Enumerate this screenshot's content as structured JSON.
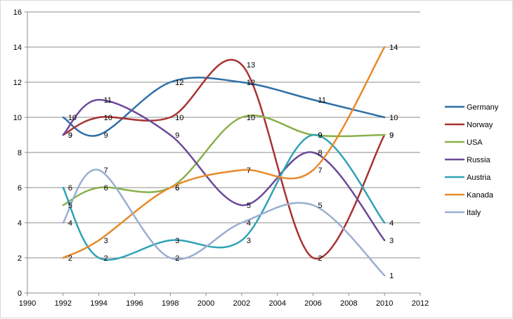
{
  "chart_data": {
    "type": "line",
    "title": "",
    "xlabel": "",
    "ylabel": "",
    "xlim": [
      1990,
      2012
    ],
    "ylim": [
      0,
      16
    ],
    "x_ticks": [
      1990,
      1992,
      1994,
      1996,
      1998,
      2000,
      2002,
      2004,
      2006,
      2008,
      2010,
      2012
    ],
    "y_ticks": [
      0,
      2,
      4,
      6,
      8,
      10,
      12,
      14,
      16
    ],
    "x_tick_labels": [
      "1990",
      "1992",
      "1994",
      "1996",
      "1998",
      "2000",
      "2002",
      "2004",
      "2006",
      "2008",
      "2010",
      "2012"
    ],
    "y_tick_labels": [
      "0",
      "2",
      "4",
      "6",
      "8",
      "10",
      "12",
      "14",
      "16"
    ],
    "x": [
      1992,
      1994,
      1998,
      2002,
      2006,
      2010
    ],
    "grid": "horizontal",
    "legend_position": "right",
    "series": [
      {
        "name": "Germany",
        "color": "#2e6fa7",
        "values": [
          10,
          9,
          12,
          12,
          11,
          10
        ],
        "labels": [
          "10",
          "9",
          "12",
          "12",
          "11",
          "10"
        ]
      },
      {
        "name": "Norway",
        "color": "#a83232",
        "values": [
          9,
          10,
          10,
          13,
          2,
          9
        ],
        "labels": [
          "9",
          "10",
          "10",
          "13",
          "2",
          "9"
        ]
      },
      {
        "name": "USA",
        "color": "#8ab04a",
        "values": [
          5,
          6,
          6,
          10,
          9,
          9
        ],
        "labels": [
          "5",
          "6",
          "6",
          "10",
          "9",
          "9"
        ]
      },
      {
        "name": "Russia",
        "color": "#6b4a9a",
        "values": [
          9,
          11,
          9,
          5,
          8,
          3
        ],
        "labels": [
          "9",
          "11",
          "9",
          "5",
          "8",
          "3"
        ]
      },
      {
        "name": "Austria",
        "color": "#2fa3b5",
        "values": [
          6,
          2,
          3,
          3,
          9,
          4
        ],
        "labels": [
          "6",
          "2",
          "3",
          "3",
          "9",
          "4"
        ]
      },
      {
        "name": "Kanada",
        "color": "#e8892b",
        "values": [
          2,
          3,
          6,
          7,
          7,
          14
        ],
        "labels": [
          "2",
          "3",
          "6",
          "7",
          "7",
          "14"
        ]
      },
      {
        "name": "Italy",
        "color": "#9aaed0",
        "values": [
          4,
          7,
          2,
          4,
          5,
          1
        ],
        "labels": [
          "4",
          "7",
          "2",
          "4",
          "5",
          "1"
        ]
      }
    ]
  }
}
